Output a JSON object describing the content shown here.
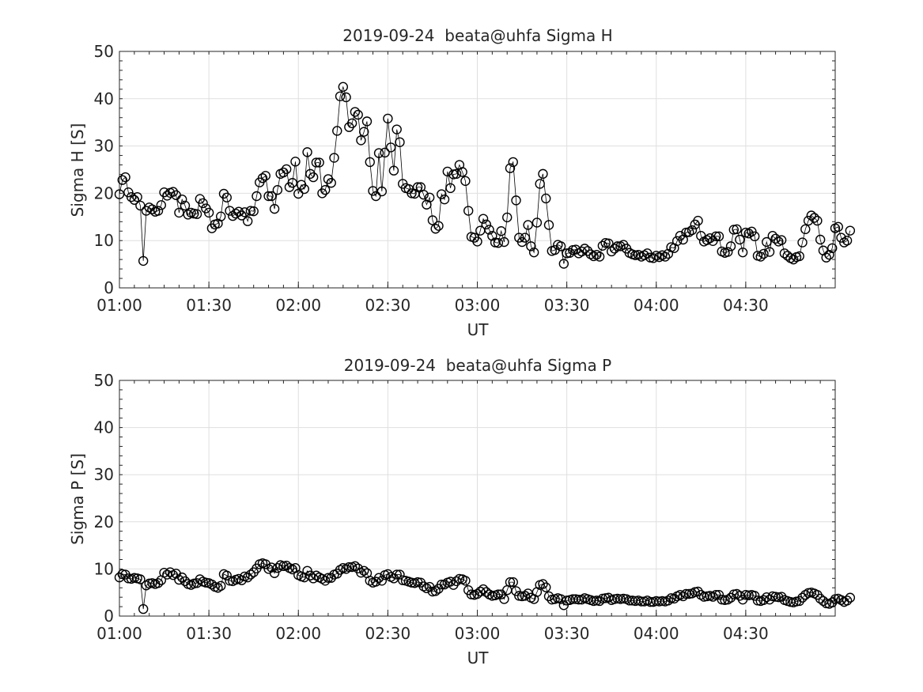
{
  "figure": {
    "background": "#ffffff"
  },
  "chart_data": [
    {
      "type": "scatter",
      "title": "2019-09-24  beata@uhfa Sigma H",
      "xlabel": "UT",
      "ylabel": "Sigma H [S]",
      "xlim": [
        "01:00",
        "05:00"
      ],
      "ylim": [
        0,
        50
      ],
      "xticks": [
        "01:00",
        "01:30",
        "02:00",
        "02:30",
        "03:00",
        "03:30",
        "04:00",
        "04:30"
      ],
      "yticks": [
        "0",
        "10",
        "20",
        "30",
        "40",
        "50"
      ],
      "grid": true,
      "line_color": "#000000",
      "marker": "open-circle",
      "series": [
        {
          "x_start": "01:00",
          "x_step_minutes": 1,
          "values": [
            19.8,
            22.8,
            23.4,
            20.2,
            19.2,
            18.6,
            19.2,
            17.4,
            5.7,
            16.3,
            17.0,
            16.6,
            16.1,
            16.3,
            17.5,
            20.2,
            19.5,
            20.1,
            20.3,
            19.6,
            15.9,
            18.7,
            17.4,
            15.5,
            15.9,
            15.7,
            15.6,
            18.8,
            17.9,
            16.8,
            15.9,
            12.6,
            13.4,
            13.6,
            15.1,
            19.9,
            19.1,
            16.3,
            15.2,
            15.7,
            16.1,
            15.3,
            16.0,
            14.1,
            16.3,
            16.2,
            19.4,
            22.3,
            23.2,
            23.7,
            19.4,
            19.4,
            16.7,
            20.7,
            24.1,
            24.4,
            25.1,
            21.3,
            22.2,
            26.7,
            19.9,
            21.8,
            20.9,
            28.7,
            24.1,
            23.4,
            26.5,
            26.5,
            20.0,
            20.7,
            23.0,
            22.2,
            27.5,
            33.2,
            40.5,
            42.5,
            40.3,
            34.0,
            34.8,
            37.2,
            36.6,
            31.2,
            33.0,
            35.2,
            26.6,
            20.5,
            19.4,
            28.5,
            20.4,
            28.6,
            35.8,
            29.7,
            24.8,
            33.5,
            30.8,
            22.0,
            21.1,
            20.9,
            20.0,
            19.9,
            21.3,
            21.3,
            19.7,
            17.6,
            19.1,
            14.3,
            12.5,
            13.1,
            19.8,
            18.7,
            24.6,
            21.1,
            24.0,
            24.1,
            26.0,
            24.5,
            22.6,
            16.3,
            10.8,
            10.6,
            9.8,
            12.1,
            14.6,
            13.4,
            12.3,
            11.0,
            9.6,
            9.5,
            12.0,
            9.7,
            14.9,
            25.3,
            26.6,
            18.5,
            10.6,
            9.7,
            10.6,
            13.3,
            8.8,
            7.5,
            13.8,
            22.0,
            24.1,
            18.9,
            13.3,
            7.8,
            8.0,
            9.1,
            8.8,
            5.1,
            7.3,
            7.4,
            8.0,
            8.1,
            7.3,
            7.7,
            8.3,
            7.8,
            7.1,
            6.7,
            7.0,
            6.6,
            8.9,
            9.5,
            9.4,
            7.7,
            8.3,
            8.8,
            8.8,
            9.1,
            8.3,
            7.4,
            7.1,
            6.9,
            7.0,
            6.6,
            6.9,
            7.3,
            6.4,
            6.3,
            6.8,
            6.5,
            6.9,
            6.6,
            7.2,
            8.6,
            8.4,
            9.9,
            11.0,
            10.2,
            11.7,
            11.8,
            12.2,
            13.4,
            14.2,
            11.0,
            9.8,
            10.1,
            10.5,
            9.9,
            10.9,
            10.9,
            7.7,
            7.4,
            7.6,
            8.8,
            12.3,
            12.4,
            10.2,
            7.5,
            11.7,
            11.5,
            11.9,
            10.9,
            6.8,
            6.6,
            7.2,
            9.7,
            7.6,
            11.0,
            10.4,
            9.8,
            10.1,
            7.3,
            6.8,
            6.3,
            6.0,
            6.5,
            6.7,
            9.6,
            12.4,
            14.2,
            15.3,
            14.8,
            14.2,
            10.2,
            7.9,
            6.4,
            7.0,
            8.4,
            12.6,
            12.9,
            10.6,
            9.6,
            10.0,
            12.1
          ]
        }
      ]
    },
    {
      "type": "scatter",
      "title": "2019-09-24  beata@uhfa Sigma P",
      "xlabel": "UT",
      "ylabel": "Sigma P [S]",
      "xlim": [
        "01:00",
        "05:00"
      ],
      "ylim": [
        0,
        50
      ],
      "xticks": [
        "01:00",
        "01:30",
        "02:00",
        "02:30",
        "03:00",
        "03:30",
        "04:00",
        "04:30"
      ],
      "yticks": [
        "0",
        "10",
        "20",
        "30",
        "40",
        "50"
      ],
      "grid": true,
      "line_color": "#000000",
      "marker": "open-circle",
      "series": [
        {
          "x_start": "01:00",
          "x_step_minutes": 1,
          "values": [
            8.2,
            8.9,
            8.8,
            8.0,
            7.9,
            8.1,
            8.0,
            7.8,
            1.5,
            6.5,
            6.9,
            7.0,
            6.8,
            7.0,
            7.6,
            9.2,
            8.8,
            9.3,
            8.7,
            9.0,
            7.7,
            8.2,
            7.4,
            6.8,
            6.6,
            6.9,
            7.0,
            7.8,
            7.3,
            7.1,
            7.0,
            6.7,
            6.2,
            6.0,
            6.4,
            8.9,
            8.6,
            7.5,
            7.4,
            7.7,
            7.9,
            7.6,
            8.4,
            8.2,
            8.8,
            9.3,
            10.1,
            11.0,
            11.2,
            11.0,
            10.0,
            10.3,
            9.1,
            10.2,
            10.8,
            10.6,
            10.7,
            10.2,
            9.9,
            10.2,
            8.7,
            8.4,
            8.2,
            9.6,
            8.6,
            8.0,
            8.6,
            8.2,
            7.9,
            7.5,
            8.1,
            8.1,
            8.8,
            9.0,
            9.8,
            10.2,
            10.0,
            10.4,
            10.4,
            10.6,
            10.1,
            9.2,
            9.6,
            9.1,
            7.5,
            7.1,
            7.3,
            8.1,
            7.5,
            8.7,
            8.9,
            8.3,
            8.0,
            8.8,
            8.8,
            7.6,
            7.5,
            7.3,
            7.1,
            7.0,
            7.2,
            7.1,
            6.3,
            5.9,
            6.2,
            5.2,
            5.3,
            5.8,
            6.7,
            6.7,
            7.1,
            7.3,
            6.6,
            7.4,
            7.9,
            7.8,
            7.5,
            5.5,
            4.6,
            4.5,
            4.7,
            5.2,
            5.7,
            5.1,
            4.6,
            4.3,
            4.4,
            4.6,
            4.6,
            3.6,
            5.5,
            7.2,
            7.2,
            5.3,
            4.3,
            4.2,
            4.3,
            4.8,
            3.9,
            3.6,
            5.1,
            6.6,
            6.8,
            6.1,
            4.2,
            3.5,
            3.6,
            3.8,
            3.6,
            2.3,
            3.3,
            3.4,
            3.6,
            3.6,
            3.5,
            3.5,
            3.8,
            3.6,
            3.4,
            3.2,
            3.3,
            3.2,
            3.7,
            3.8,
            3.9,
            3.4,
            3.6,
            3.7,
            3.6,
            3.7,
            3.6,
            3.3,
            3.3,
            3.2,
            3.3,
            3.1,
            3.1,
            3.3,
            3.0,
            3.0,
            3.2,
            3.1,
            3.2,
            3.1,
            3.3,
            3.8,
            3.7,
            4.2,
            4.5,
            4.2,
            4.7,
            4.7,
            4.8,
            5.1,
            5.2,
            4.5,
            4.1,
            4.2,
            4.3,
            4.1,
            4.5,
            4.5,
            3.5,
            3.4,
            3.5,
            3.9,
            4.6,
            4.7,
            4.3,
            3.5,
            4.5,
            4.4,
            4.5,
            4.3,
            3.3,
            3.2,
            3.4,
            4.0,
            3.5,
            4.2,
            4.1,
            4.0,
            4.1,
            3.4,
            3.2,
            3.0,
            2.9,
            3.1,
            3.2,
            3.9,
            4.5,
            4.9,
            5.0,
            4.8,
            4.5,
            3.7,
            3.2,
            2.7,
            2.6,
            2.9,
            3.6,
            3.7,
            3.4,
            3.0,
            3.3,
            3.9
          ]
        }
      ]
    }
  ]
}
